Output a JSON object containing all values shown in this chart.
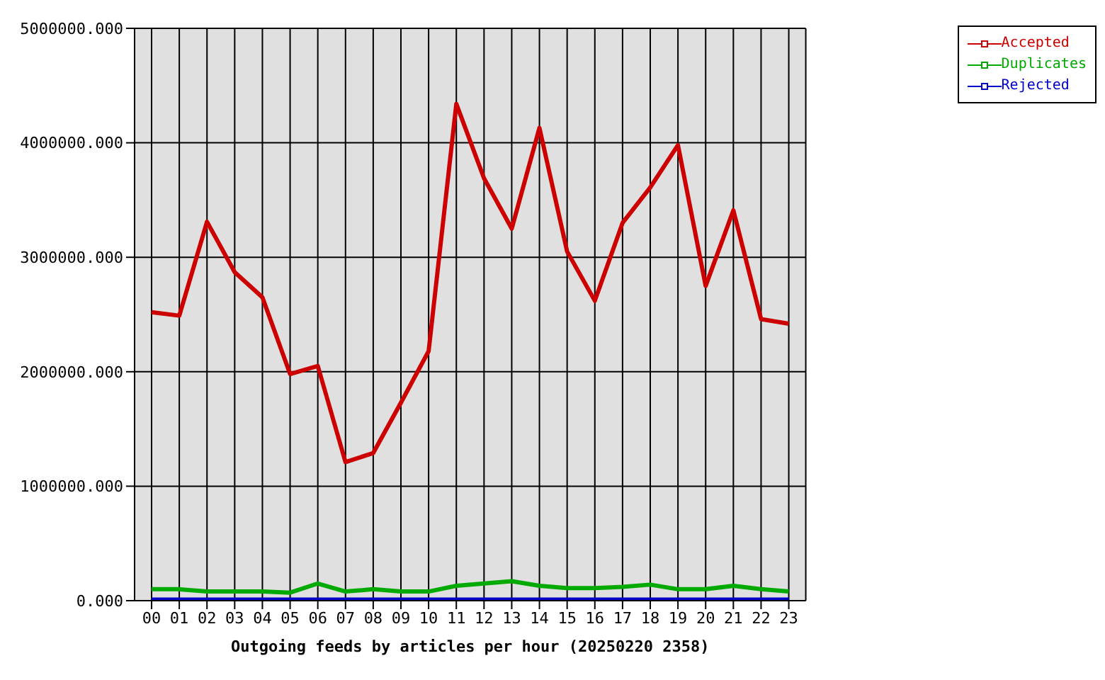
{
  "chart_data": {
    "type": "line",
    "xlabel": "Outgoing feeds by articles per hour (20250220 2358)",
    "categories": [
      "00",
      "01",
      "02",
      "03",
      "04",
      "05",
      "06",
      "07",
      "08",
      "09",
      "10",
      "11",
      "12",
      "13",
      "14",
      "15",
      "16",
      "17",
      "18",
      "19",
      "20",
      "21",
      "22",
      "23"
    ],
    "series": [
      {
        "name": "Accepted",
        "color": "#cc0000",
        "values": [
          2520000,
          2490000,
          3310000,
          2870000,
          2650000,
          1980000,
          2050000,
          1210000,
          1290000,
          1730000,
          2180000,
          4340000,
          3690000,
          3250000,
          4130000,
          3050000,
          2620000,
          3300000,
          3610000,
          3980000,
          2750000,
          3410000,
          2460000,
          2420000
        ]
      },
      {
        "name": "Duplicates",
        "color": "#00aa00",
        "values": [
          100000,
          100000,
          80000,
          80000,
          80000,
          70000,
          150000,
          80000,
          100000,
          80000,
          80000,
          130000,
          150000,
          170000,
          130000,
          110000,
          110000,
          120000,
          140000,
          100000,
          100000,
          130000,
          100000,
          80000
        ]
      },
      {
        "name": "Rejected",
        "color": "#0000cc",
        "values": [
          10000,
          10000,
          10000,
          10000,
          10000,
          10000,
          10000,
          10000,
          10000,
          10000,
          10000,
          10000,
          10000,
          10000,
          10000,
          10000,
          10000,
          10000,
          10000,
          10000,
          10000,
          10000,
          10000,
          10000
        ]
      }
    ],
    "ylim": [
      0,
      5000000
    ],
    "yticks": [
      {
        "value": 0,
        "label": "0.000"
      },
      {
        "value": 1000000,
        "label": "1000000.000"
      },
      {
        "value": 2000000,
        "label": "2000000.000"
      },
      {
        "value": 3000000,
        "label": "3000000.000"
      },
      {
        "value": 4000000,
        "label": "4000000.000"
      },
      {
        "value": 5000000,
        "label": "5000000.000"
      }
    ],
    "grid": true,
    "legend": "top right",
    "marker": "none",
    "line_style": "solid"
  }
}
